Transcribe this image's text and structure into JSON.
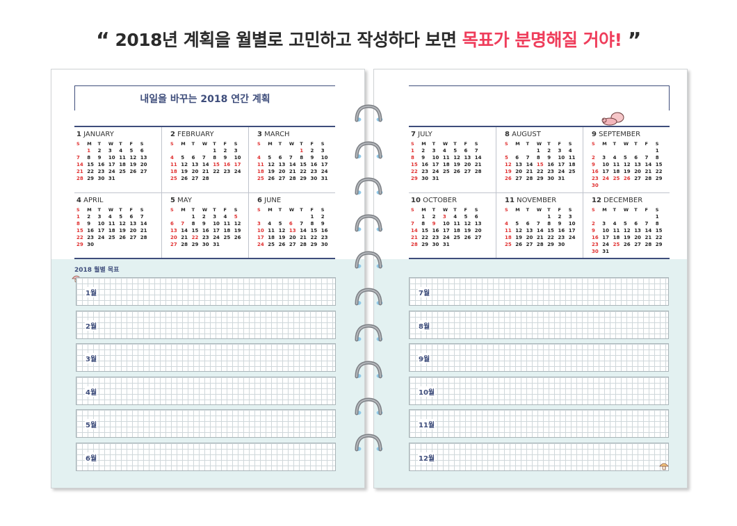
{
  "headline": {
    "open_quote": "“",
    "text": "2018년 계획을 월별로 고민하고 작성하다 보면 ",
    "highlight": "목표가 분명해질 거야!",
    "close_quote": "”"
  },
  "left_page": {
    "title": "내일을 바꾸는 2018 연간 계획",
    "goals_title": "2018 월별 목표",
    "months": [
      {
        "num": "1",
        "name": "JANUARY",
        "offset": 1,
        "days": 31,
        "reds": [
          7,
          14,
          21,
          28,
          1
        ]
      },
      {
        "num": "2",
        "name": "FEBRUARY",
        "offset": 4,
        "days": 28,
        "reds": [
          4,
          11,
          18,
          25,
          15,
          16,
          17
        ]
      },
      {
        "num": "3",
        "name": "MARCH",
        "offset": 4,
        "days": 31,
        "reds": [
          4,
          11,
          18,
          25,
          1
        ]
      },
      {
        "num": "4",
        "name": "APRIL",
        "offset": 0,
        "days": 30,
        "reds": [
          1,
          8,
          15,
          22,
          29
        ]
      },
      {
        "num": "5",
        "name": "MAY",
        "offset": 2,
        "days": 31,
        "reds": [
          6,
          13,
          20,
          27,
          5,
          7,
          22
        ]
      },
      {
        "num": "6",
        "name": "JUNE",
        "offset": 5,
        "days": 30,
        "reds": [
          3,
          10,
          17,
          24,
          6,
          13
        ]
      }
    ],
    "goals": [
      "1월",
      "2월",
      "3월",
      "4월",
      "5월",
      "6월"
    ]
  },
  "right_page": {
    "months": [
      {
        "num": "7",
        "name": "JULY",
        "offset": 0,
        "days": 31,
        "reds": [
          1,
          8,
          15,
          22,
          29
        ]
      },
      {
        "num": "8",
        "name": "AUGUST",
        "offset": 3,
        "days": 31,
        "reds": [
          5,
          12,
          19,
          26,
          15
        ]
      },
      {
        "num": "9",
        "name": "SEPTEMBER",
        "offset": 6,
        "days": 30,
        "reds": [
          2,
          9,
          16,
          23,
          30,
          24,
          25,
          26
        ]
      },
      {
        "num": "10",
        "name": "OCTOBER",
        "offset": 1,
        "days": 31,
        "reds": [
          7,
          14,
          21,
          28,
          3,
          9
        ]
      },
      {
        "num": "11",
        "name": "NOVEMBER",
        "offset": 4,
        "days": 30,
        "reds": [
          4,
          11,
          18,
          25
        ]
      },
      {
        "num": "12",
        "name": "DECEMBER",
        "offset": 6,
        "days": 31,
        "reds": [
          2,
          9,
          16,
          23,
          30,
          25
        ]
      }
    ],
    "goals": [
      "7월",
      "8월",
      "9월",
      "10월",
      "11월",
      "12월"
    ]
  },
  "weekday_headers": [
    "S",
    "M",
    "T",
    "W",
    "T",
    "F",
    "S"
  ],
  "colors": {
    "navy": "#3e4d7b",
    "accent": "#ef3d5b",
    "holiday": "#e03030",
    "mint": "#e3f1f1"
  }
}
